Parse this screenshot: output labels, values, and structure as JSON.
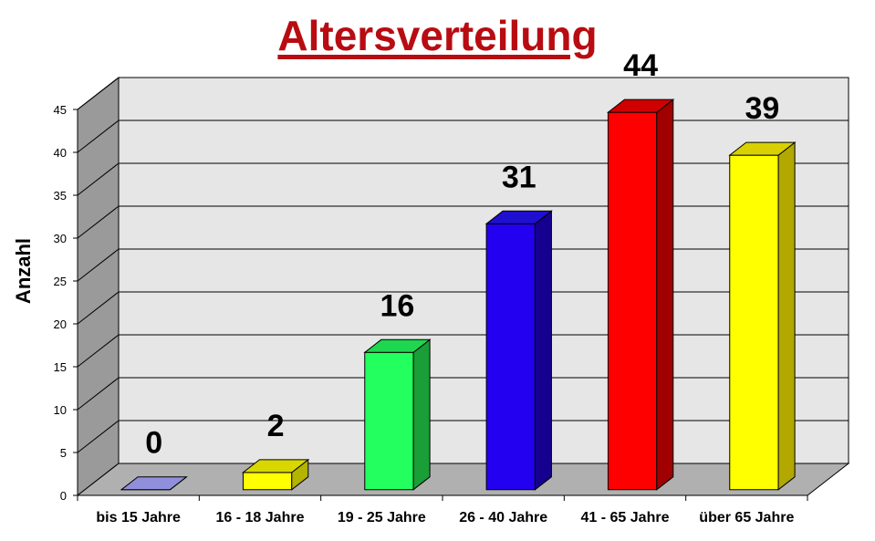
{
  "chart_data": {
    "type": "bar",
    "title": "Altersverteilung",
    "ylabel": "Anzahl",
    "xlabel": "",
    "categories": [
      "bis 15 Jahre",
      "16 - 18 Jahre",
      "19 - 25 Jahre",
      "26 - 40 Jahre",
      "41 - 65 Jahre",
      "über 65 Jahre"
    ],
    "values": [
      0,
      2,
      16,
      31,
      44,
      39
    ],
    "colors": [
      "#7070c8",
      "#ffff00",
      "#22ff5e",
      "#2400f0",
      "#ff0000",
      "#ffff00"
    ],
    "side_colors": [
      "#4a4a9a",
      "#b3b300",
      "#1a9e38",
      "#16008f",
      "#a00000",
      "#b3a800"
    ],
    "top_colors": [
      "#8f8fdc",
      "#d8d800",
      "#1fd650",
      "#1f10d0",
      "#d00000",
      "#d8d000"
    ],
    "ylim": [
      0,
      45
    ],
    "yticks": [
      0,
      5,
      10,
      15,
      20,
      25,
      30,
      35,
      40,
      45
    ],
    "data_labels": [
      "0",
      "2",
      "16",
      "31",
      "44",
      "39"
    ],
    "grid": true,
    "style": "3d-column",
    "title_color": "#b80c12",
    "wall_color": "#e6e6e6",
    "side_wall_color": "#9a9a9a",
    "floor_color": "#b0b0b0"
  }
}
